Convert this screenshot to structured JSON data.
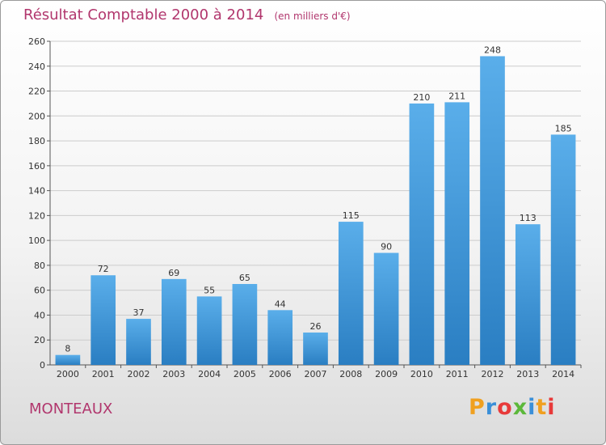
{
  "header": {
    "title": "Résultat Comptable 2000 à 2014",
    "subtitle": "(en milliers d'€)"
  },
  "footer": {
    "commune": "MONTEAUX",
    "logo_text": "Proxiti",
    "logo_colors": [
      "#f0a020",
      "#3a8fd8",
      "#e83a3a",
      "#5cb83a",
      "#3a8fd8",
      "#f0a020",
      "#e83a3a"
    ]
  },
  "colors": {
    "accent": "#b1366d",
    "bar_top": "#5aaeea",
    "bar_bottom": "#2a7ec2",
    "grid": "#cccccc"
  },
  "chart_data": {
    "type": "bar",
    "title": "Résultat Comptable 2000 à 2014",
    "subtitle": "(en milliers d'€)",
    "xlabel": "",
    "ylabel": "",
    "categories": [
      "2000",
      "2001",
      "2002",
      "2003",
      "2004",
      "2005",
      "2006",
      "2007",
      "2008",
      "2009",
      "2010",
      "2011",
      "2012",
      "2013",
      "2014"
    ],
    "values": [
      8,
      72,
      37,
      69,
      55,
      65,
      44,
      26,
      115,
      90,
      210,
      211,
      248,
      113,
      185
    ],
    "ylim": [
      0,
      260
    ],
    "yticks": [
      0,
      20,
      40,
      60,
      80,
      100,
      120,
      140,
      160,
      180,
      200,
      220,
      240,
      260
    ],
    "grid": true,
    "data_labels": true
  }
}
